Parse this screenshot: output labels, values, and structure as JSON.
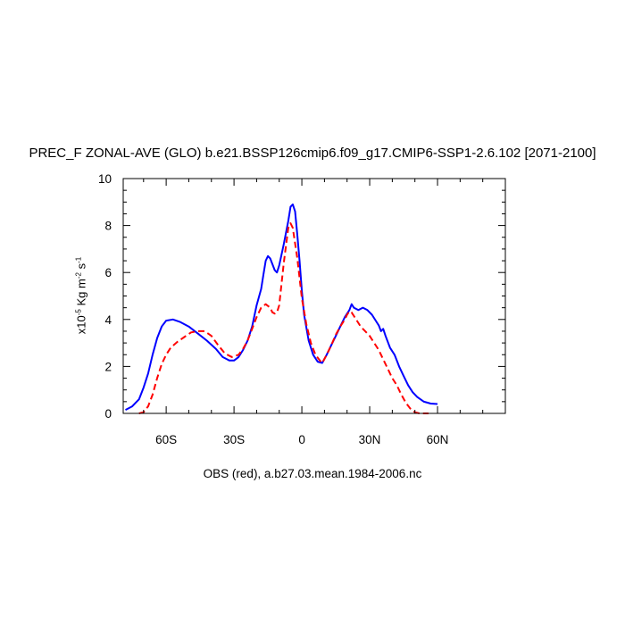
{
  "chart_data": {
    "type": "line",
    "title": "PREC_F ZONAL-AVE (GLO) b.e21.BSSP126cmip6.f09_g17.CMIP6-SSP1-2.6.102 [2071-2100]",
    "xlabel": "OBS (red), a.b27.03.mean.1984-2006.nc",
    "ylabel": {
      "base": "x10",
      "exp1": "-5",
      "mid": " Kg m",
      "exp2": "-2",
      "mid2": " s",
      "exp3": "-1"
    },
    "xlim": [
      -79,
      90
    ],
    "ylim": [
      0,
      10
    ],
    "x_ticks": [
      {
        "value": -60,
        "label": "60S"
      },
      {
        "value": -30,
        "label": "30S"
      },
      {
        "value": 0,
        "label": "0"
      },
      {
        "value": 30,
        "label": "30N"
      },
      {
        "value": 60,
        "label": "60N"
      }
    ],
    "y_ticks": [
      {
        "value": 0,
        "label": "0"
      },
      {
        "value": 2,
        "label": "2"
      },
      {
        "value": 4,
        "label": "4"
      },
      {
        "value": 6,
        "label": "6"
      },
      {
        "value": 8,
        "label": "8"
      },
      {
        "value": 10,
        "label": "10"
      }
    ],
    "grid": false,
    "series": [
      {
        "color": "#0000ff",
        "style": "solid",
        "points": [
          [
            -78,
            0.15
          ],
          [
            -75,
            0.3
          ],
          [
            -72,
            0.6
          ],
          [
            -70,
            1.1
          ],
          [
            -68,
            1.7
          ],
          [
            -66,
            2.5
          ],
          [
            -64,
            3.2
          ],
          [
            -62,
            3.7
          ],
          [
            -60,
            3.95
          ],
          [
            -57,
            4.0
          ],
          [
            -54,
            3.9
          ],
          [
            -50,
            3.7
          ],
          [
            -46,
            3.4
          ],
          [
            -42,
            3.1
          ],
          [
            -38,
            2.75
          ],
          [
            -35,
            2.4
          ],
          [
            -32,
            2.25
          ],
          [
            -30,
            2.25
          ],
          [
            -28,
            2.4
          ],
          [
            -26,
            2.7
          ],
          [
            -24,
            3.1
          ],
          [
            -22,
            3.7
          ],
          [
            -20,
            4.6
          ],
          [
            -18,
            5.3
          ],
          [
            -17,
            5.9
          ],
          [
            -16,
            6.5
          ],
          [
            -15,
            6.7
          ],
          [
            -14,
            6.6
          ],
          [
            -12,
            6.1
          ],
          [
            -11,
            6.0
          ],
          [
            -10,
            6.3
          ],
          [
            -8,
            7.2
          ],
          [
            -6,
            8.2
          ],
          [
            -5,
            8.8
          ],
          [
            -4,
            8.9
          ],
          [
            -3,
            8.6
          ],
          [
            -2,
            7.6
          ],
          [
            -1,
            6.5
          ],
          [
            0,
            5.2
          ],
          [
            1,
            4.2
          ],
          [
            3,
            3.1
          ],
          [
            5,
            2.5
          ],
          [
            7,
            2.2
          ],
          [
            9,
            2.15
          ],
          [
            11,
            2.5
          ],
          [
            13,
            2.9
          ],
          [
            15,
            3.3
          ],
          [
            17,
            3.7
          ],
          [
            19,
            4.1
          ],
          [
            21,
            4.4
          ],
          [
            22,
            4.65
          ],
          [
            23,
            4.5
          ],
          [
            25,
            4.4
          ],
          [
            27,
            4.5
          ],
          [
            29,
            4.4
          ],
          [
            31,
            4.2
          ],
          [
            33,
            3.9
          ],
          [
            34,
            3.75
          ],
          [
            35,
            3.5
          ],
          [
            36,
            3.6
          ],
          [
            37,
            3.3
          ],
          [
            39,
            2.8
          ],
          [
            41,
            2.5
          ],
          [
            43,
            2.0
          ],
          [
            45,
            1.6
          ],
          [
            47,
            1.2
          ],
          [
            49,
            0.9
          ],
          [
            51,
            0.7
          ],
          [
            54,
            0.5
          ],
          [
            57,
            0.42
          ],
          [
            60,
            0.4
          ]
        ]
      },
      {
        "color": "#ff0000",
        "style": "dashed",
        "points": [
          [
            -72,
            0.0
          ],
          [
            -70,
            0.05
          ],
          [
            -68,
            0.3
          ],
          [
            -66,
            0.8
          ],
          [
            -64,
            1.5
          ],
          [
            -62,
            2.1
          ],
          [
            -60,
            2.5
          ],
          [
            -58,
            2.8
          ],
          [
            -55,
            3.05
          ],
          [
            -52,
            3.25
          ],
          [
            -49,
            3.45
          ],
          [
            -46,
            3.5
          ],
          [
            -43,
            3.5
          ],
          [
            -40,
            3.3
          ],
          [
            -37,
            2.9
          ],
          [
            -34,
            2.55
          ],
          [
            -31,
            2.4
          ],
          [
            -28,
            2.5
          ],
          [
            -26,
            2.75
          ],
          [
            -24,
            3.1
          ],
          [
            -22,
            3.6
          ],
          [
            -20,
            4.1
          ],
          [
            -18,
            4.5
          ],
          [
            -16,
            4.65
          ],
          [
            -14,
            4.5
          ],
          [
            -13,
            4.3
          ],
          [
            -12,
            4.25
          ],
          [
            -11,
            4.3
          ],
          [
            -10,
            4.6
          ],
          [
            -8,
            6.4
          ],
          [
            -6,
            7.9
          ],
          [
            -5,
            8.1
          ],
          [
            -4,
            7.9
          ],
          [
            -2,
            6.6
          ],
          [
            0,
            4.9
          ],
          [
            2,
            3.8
          ],
          [
            4,
            3.0
          ],
          [
            6,
            2.5
          ],
          [
            8,
            2.25
          ],
          [
            9,
            2.15
          ],
          [
            11,
            2.5
          ],
          [
            13,
            2.9
          ],
          [
            15,
            3.35
          ],
          [
            17,
            3.7
          ],
          [
            19,
            4.0
          ],
          [
            20,
            4.2
          ],
          [
            21,
            4.35
          ],
          [
            22,
            4.3
          ],
          [
            24,
            4.0
          ],
          [
            26,
            3.7
          ],
          [
            28,
            3.5
          ],
          [
            30,
            3.3
          ],
          [
            32,
            3.0
          ],
          [
            34,
            2.7
          ],
          [
            36,
            2.3
          ],
          [
            38,
            1.9
          ],
          [
            40,
            1.5
          ],
          [
            42,
            1.2
          ],
          [
            44,
            0.8
          ],
          [
            46,
            0.45
          ],
          [
            48,
            0.2
          ],
          [
            50,
            0.05
          ],
          [
            52,
            0.0
          ],
          [
            56,
            0.0
          ]
        ]
      }
    ]
  }
}
